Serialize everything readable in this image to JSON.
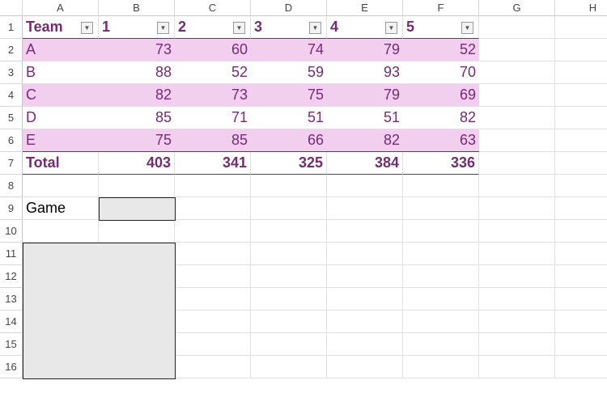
{
  "columns": [
    "A",
    "B",
    "C",
    "D",
    "E",
    "F",
    "G",
    "H"
  ],
  "rows": [
    "1",
    "2",
    "3",
    "4",
    "5",
    "6",
    "7",
    "8",
    "9",
    "10",
    "11",
    "12",
    "13",
    "14",
    "15",
    "16"
  ],
  "table": {
    "headers": [
      "Team",
      "1",
      "2",
      "3",
      "4",
      "5"
    ],
    "data": [
      [
        "A",
        "73",
        "60",
        "74",
        "79",
        "52"
      ],
      [
        "B",
        "88",
        "52",
        "59",
        "93",
        "70"
      ],
      [
        "C",
        "82",
        "73",
        "75",
        "79",
        "69"
      ],
      [
        "D",
        "85",
        "71",
        "51",
        "51",
        "82"
      ],
      [
        "E",
        "75",
        "85",
        "66",
        "82",
        "63"
      ]
    ],
    "total": [
      "Total",
      "403",
      "341",
      "325",
      "384",
      "336"
    ]
  },
  "game_label": "Game",
  "colors": {
    "text": "#772a74",
    "band": "#f2ceef"
  }
}
